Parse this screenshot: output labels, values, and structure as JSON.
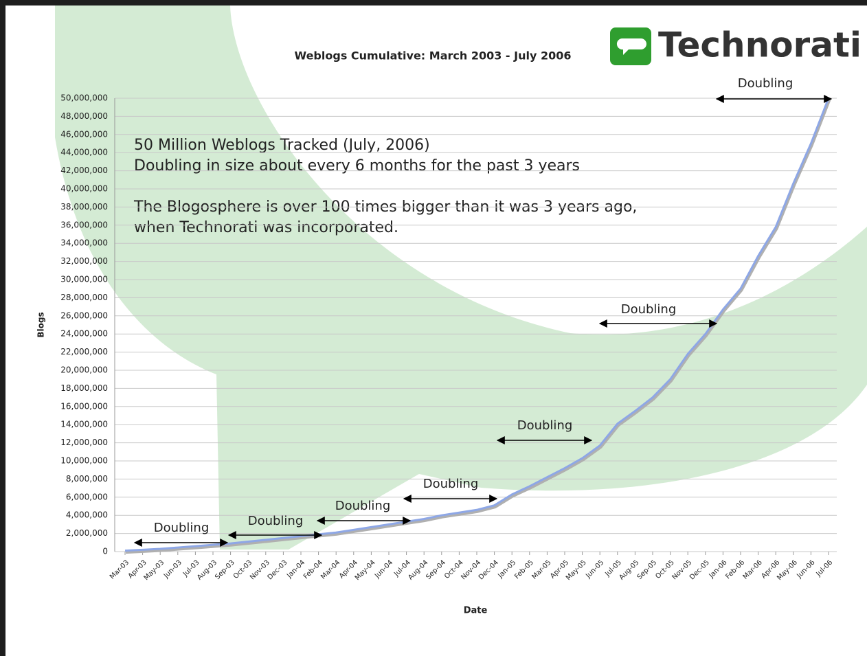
{
  "chart_data": {
    "type": "line",
    "title": "Weblogs Cumulative: March 2003 - July 2006",
    "logo": "Technorati",
    "x_label": "Date",
    "y_label": "Blogs",
    "notes": [
      "50 Million Weblogs Tracked (July, 2006)",
      "Doubling in size about every 6 months for the past 3 years",
      "The Blogosphere is over 100 times bigger than it was 3 years ago,",
      "when Technorati was incorporated."
    ],
    "annotations": [
      "Doubling",
      "Doubling",
      "Doubling",
      "Doubling",
      "Doubling",
      "Doubling",
      "Doubling"
    ],
    "categories": [
      "Mar-03",
      "Apr-03",
      "May-03",
      "Jun-03",
      "Jul-03",
      "Aug-03",
      "Sep-03",
      "Oct-03",
      "Nov-03",
      "Dec-03",
      "Jan-04",
      "Feb-04",
      "Mar-04",
      "Apr-04",
      "May-04",
      "Jun-04",
      "Jul-04",
      "Aug-04",
      "Sep-04",
      "Oct-04",
      "Nov-04",
      "Dec-04",
      "Jan-05",
      "Feb-05",
      "Mar-05",
      "Apr-05",
      "May-05",
      "Jun-05",
      "Jul-05",
      "Aug-05",
      "Sep-05",
      "Oct-05",
      "Nov-05",
      "Dec-05",
      "Jan-06",
      "Feb-06",
      "Mar-06",
      "Apr-06",
      "May-06",
      "Jun-06",
      "Jul-06"
    ],
    "series": [
      {
        "name": "Blogs",
        "color": "#8ea7e6",
        "values": [
          100000,
          200000,
          300000,
          450000,
          600000,
          750000,
          900000,
          1100000,
          1300000,
          1500000,
          1700000,
          1900000,
          2100000,
          2400000,
          2700000,
          3000000,
          3300000,
          3600000,
          4000000,
          4300000,
          4600000,
          5100000,
          6300000,
          7200000,
          8200000,
          9200000,
          10300000,
          11700000,
          14100000,
          15500000,
          17000000,
          19000000,
          21800000,
          24000000,
          26700000,
          29000000,
          32600000,
          35800000,
          40600000,
          45000000,
          50000000
        ]
      }
    ],
    "ylim": [
      0,
      50000000
    ],
    "yticks": [
      {
        "value": 0,
        "label": "0"
      },
      {
        "value": 2000000,
        "label": "2,000,000"
      },
      {
        "value": 4000000,
        "label": "4,000,000"
      },
      {
        "value": 6000000,
        "label": "6,000,000"
      },
      {
        "value": 8000000,
        "label": "8,000,000"
      },
      {
        "value": 10000000,
        "label": "10,000,000"
      },
      {
        "value": 12000000,
        "label": "12,000,000"
      },
      {
        "value": 14000000,
        "label": "14,000,000"
      },
      {
        "value": 16000000,
        "label": "16,000,000"
      },
      {
        "value": 18000000,
        "label": "18,000,000"
      },
      {
        "value": 20000000,
        "label": "20,000,000"
      },
      {
        "value": 22000000,
        "label": "22,000,000"
      },
      {
        "value": 24000000,
        "label": "24,000,000"
      },
      {
        "value": 26000000,
        "label": "26,000,000"
      },
      {
        "value": 28000000,
        "label": "28,000,000"
      },
      {
        "value": 30000000,
        "label": "30,000,000"
      },
      {
        "value": 32000000,
        "label": "32,000,000"
      },
      {
        "value": 34000000,
        "label": "34,000,000"
      },
      {
        "value": 36000000,
        "label": "36,000,000"
      },
      {
        "value": 38000000,
        "label": "38,000,000"
      },
      {
        "value": 40000000,
        "label": "40,000,000"
      },
      {
        "value": 42000000,
        "label": "42,000,000"
      },
      {
        "value": 44000000,
        "label": "44,000,000"
      },
      {
        "value": 46000000,
        "label": "46,000,000"
      },
      {
        "value": 48000000,
        "label": "48,000,000"
      },
      {
        "value": 50000000,
        "label": "50,000,000"
      }
    ],
    "grid": true
  }
}
